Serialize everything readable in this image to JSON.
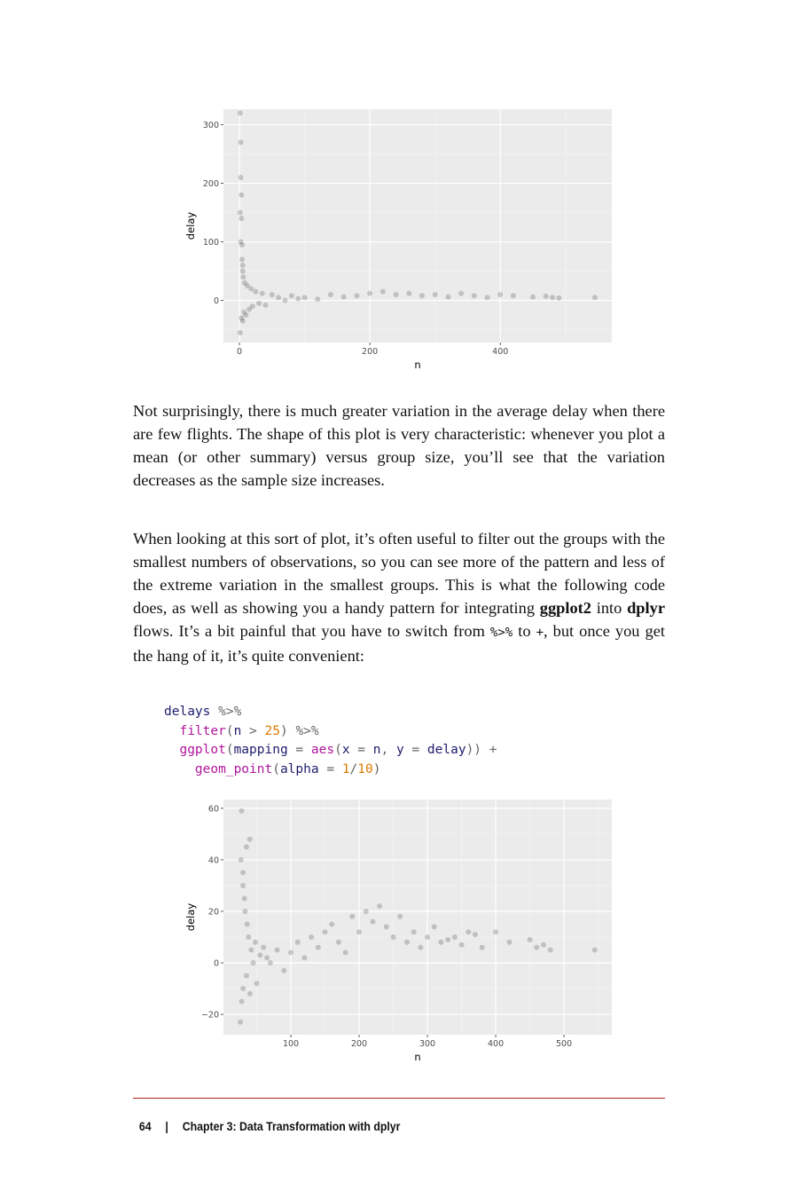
{
  "chart_data": [
    {
      "type": "scatter",
      "x_label": "n",
      "y_label": "delay",
      "x": [
        1,
        1,
        2,
        2,
        3,
        3,
        4,
        5,
        5,
        6,
        8,
        10,
        12,
        15,
        18,
        20,
        25,
        30,
        35,
        40,
        50,
        60,
        70,
        80,
        90,
        100,
        120,
        140,
        160,
        180,
        200,
        220,
        240,
        260,
        280,
        300,
        320,
        340,
        360,
        380,
        400,
        420,
        450,
        470,
        480,
        490,
        545,
        2,
        1,
        3,
        4,
        5,
        7
      ],
      "y": [
        320,
        -55,
        270,
        210,
        180,
        140,
        95,
        60,
        -35,
        40,
        30,
        -25,
        25,
        -15,
        20,
        -10,
        15,
        -5,
        12,
        -8,
        10,
        5,
        0,
        8,
        3,
        5,
        2,
        10,
        6,
        8,
        12,
        15,
        10,
        12,
        8,
        10,
        6,
        12,
        8,
        5,
        10,
        8,
        6,
        7,
        5,
        4,
        5,
        100,
        150,
        -30,
        70,
        50,
        -20
      ],
      "xlim": [
        -24.5,
        571
      ],
      "ylim": [
        -71.9,
        326.6
      ],
      "xticks": [
        0,
        200,
        400
      ],
      "yticks": [
        0,
        100,
        200,
        300
      ],
      "color": "#000000",
      "alpha": 0.18,
      "grid": true,
      "background": "#ebebeb"
    },
    {
      "type": "scatter",
      "x_label": "n",
      "y_label": "delay",
      "x": [
        26,
        27,
        28,
        30,
        30,
        32,
        33,
        35,
        36,
        38,
        40,
        42,
        45,
        48,
        50,
        55,
        60,
        65,
        70,
        80,
        90,
        100,
        110,
        120,
        130,
        140,
        150,
        160,
        170,
        180,
        190,
        200,
        210,
        220,
        230,
        240,
        250,
        260,
        270,
        280,
        290,
        300,
        310,
        320,
        330,
        340,
        350,
        360,
        370,
        380,
        400,
        420,
        450,
        460,
        470,
        480,
        545,
        28,
        30,
        35,
        40
      ],
      "y": [
        -23,
        40,
        -15,
        30,
        -10,
        25,
        20,
        -5,
        15,
        10,
        48,
        5,
        0,
        8,
        -8,
        3,
        6,
        2,
        0,
        5,
        -3,
        4,
        8,
        2,
        10,
        6,
        12,
        15,
        8,
        4,
        18,
        12,
        20,
        16,
        22,
        14,
        10,
        18,
        8,
        12,
        6,
        10,
        14,
        8,
        9,
        10,
        7,
        12,
        11,
        6,
        12,
        8,
        9,
        6,
        7,
        5,
        5,
        59,
        35,
        45,
        -12
      ],
      "xlim": [
        1.3,
        570
      ],
      "ylim": [
        -27.9,
        63.4
      ],
      "xticks": [
        100,
        200,
        300,
        400,
        500
      ],
      "yticks": [
        {
          "value": -20,
          "label": "−20"
        },
        0,
        20,
        40,
        60
      ],
      "color": "#000000",
      "alpha": 0.18,
      "grid": true,
      "background": "#ebebeb"
    }
  ],
  "paragraphs": [
    [
      {
        "text": "Not surprisingly, there is much greater variation in the average delay when there are few flights. The shape of this plot is very characteristic: whenever you plot a mean (or other summary) versus group size, you’ll see that the variation decreases as the sample size increases.",
        "style": "normal"
      }
    ],
    [
      {
        "text": "When looking at this sort of plot, it’s often useful to filter out the groups with the smallest numbers of observations, so you can see more of the pattern and less of the extreme variation in the smallest groups. This is what the following code does, as well as showing you a handy pattern for integrating ",
        "style": "normal"
      },
      {
        "text": "ggplot2",
        "style": "bold"
      },
      {
        "text": " into ",
        "style": "normal"
      },
      {
        "text": "dplyr",
        "style": "bold"
      },
      {
        "text": " flows. It’s a bit painful that you have to switch from ",
        "style": "normal"
      },
      {
        "text": "%>%",
        "style": "code"
      },
      {
        "text": " to ",
        "style": "normal"
      },
      {
        "text": "+",
        "style": "code"
      },
      {
        "text": ", but once you get the hang of it, it’s quite convenient:",
        "style": "normal"
      }
    ]
  ],
  "code": [
    [
      {
        "text": "delays",
        "color": "#1c1c6b"
      },
      {
        "text": " %>%",
        "color": "#666666"
      }
    ],
    [
      {
        "text": "  filter",
        "color": "#b0169c"
      },
      {
        "text": "(",
        "color": "#666666"
      },
      {
        "text": "n",
        "color": "#1c1c6b"
      },
      {
        "text": " > ",
        "color": "#666666"
      },
      {
        "text": "25",
        "color": "#e07b00"
      },
      {
        "text": ")",
        "color": "#666666"
      },
      {
        "text": " %>%",
        "color": "#666666"
      }
    ],
    [
      {
        "text": "  ggplot",
        "color": "#b0169c"
      },
      {
        "text": "(",
        "color": "#666666"
      },
      {
        "text": "mapping",
        "color": "#1c1c6b"
      },
      {
        "text": " = ",
        "color": "#666666"
      },
      {
        "text": "aes",
        "color": "#b0169c"
      },
      {
        "text": "(",
        "color": "#666666"
      },
      {
        "text": "x",
        "color": "#1c1c6b"
      },
      {
        "text": " = ",
        "color": "#666666"
      },
      {
        "text": "n",
        "color": "#1c1c6b"
      },
      {
        "text": ", ",
        "color": "#666666"
      },
      {
        "text": "y",
        "color": "#1c1c6b"
      },
      {
        "text": " = ",
        "color": "#666666"
      },
      {
        "text": "delay",
        "color": "#1c1c6b"
      },
      {
        "text": "))",
        "color": "#666666"
      },
      {
        "text": " +",
        "color": "#666666"
      }
    ],
    [
      {
        "text": "    geom_point",
        "color": "#b0169c"
      },
      {
        "text": "(",
        "color": "#666666"
      },
      {
        "text": "alpha",
        "color": "#1c1c6b"
      },
      {
        "text": " = ",
        "color": "#666666"
      },
      {
        "text": "1",
        "color": "#e07b00"
      },
      {
        "text": "/",
        "color": "#666666"
      },
      {
        "text": "10",
        "color": "#e07b00"
      },
      {
        "text": ")",
        "color": "#666666"
      }
    ]
  ],
  "footer": {
    "page_number": "64",
    "separator": "|",
    "chapter": "Chapter 3: Data Transformation with dplyr"
  }
}
